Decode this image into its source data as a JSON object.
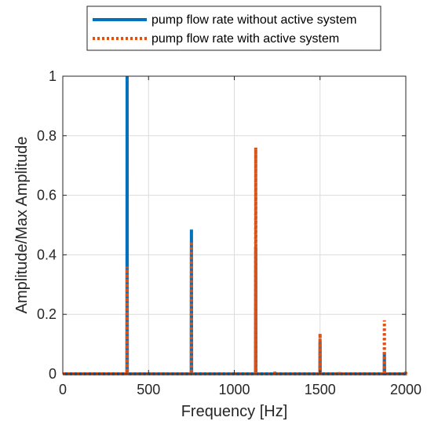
{
  "chart_data": {
    "type": "line",
    "title": "",
    "xlabel": "Frequency [Hz]",
    "ylabel": "Amplitude/Max Amplitude",
    "xlim": [
      0,
      2000
    ],
    "ylim": [
      0,
      1
    ],
    "xticks": [
      0,
      500,
      1000,
      1500,
      2000
    ],
    "yticks": [
      0,
      0.2,
      0.4,
      0.6,
      0.8,
      1
    ],
    "xtick_labels": [
      "0",
      "500",
      "1000",
      "1500",
      "2000"
    ],
    "ytick_labels": [
      "0",
      "0.2",
      "0.4",
      "0.6",
      "0.8",
      "1"
    ],
    "grid": true,
    "legend_placement": "top-outside",
    "series": [
      {
        "name": "pump flow rate without active system",
        "color": "#0072BD",
        "style": "solid",
        "x": [
          0,
          374,
          375,
          376,
          749,
          750,
          751,
          1124,
          1125,
          1126,
          1499,
          1500,
          1501,
          1874,
          1875,
          1876,
          2000
        ],
        "y": [
          0,
          0,
          1.0,
          0,
          0,
          0.485,
          0,
          0,
          0.425,
          0,
          0,
          0.11,
          0,
          0,
          0.07,
          0,
          0
        ]
      },
      {
        "name": "pump flow rate with active system",
        "color": "#D95319",
        "style": "dotted",
        "x": [
          0,
          374,
          375,
          376,
          749,
          750,
          751,
          1124,
          1125,
          1126,
          1235,
          1236,
          1237,
          1499,
          1500,
          1501,
          1612,
          1613,
          1614,
          1874,
          1875,
          1876,
          1998,
          1999,
          2000
        ],
        "y": [
          0,
          0,
          0.36,
          0,
          0,
          0.445,
          0,
          0,
          0.76,
          0,
          0,
          0.008,
          0,
          0,
          0.135,
          0,
          0,
          0.01,
          0,
          0,
          0.18,
          0,
          0,
          0.01,
          0
        ]
      }
    ]
  }
}
